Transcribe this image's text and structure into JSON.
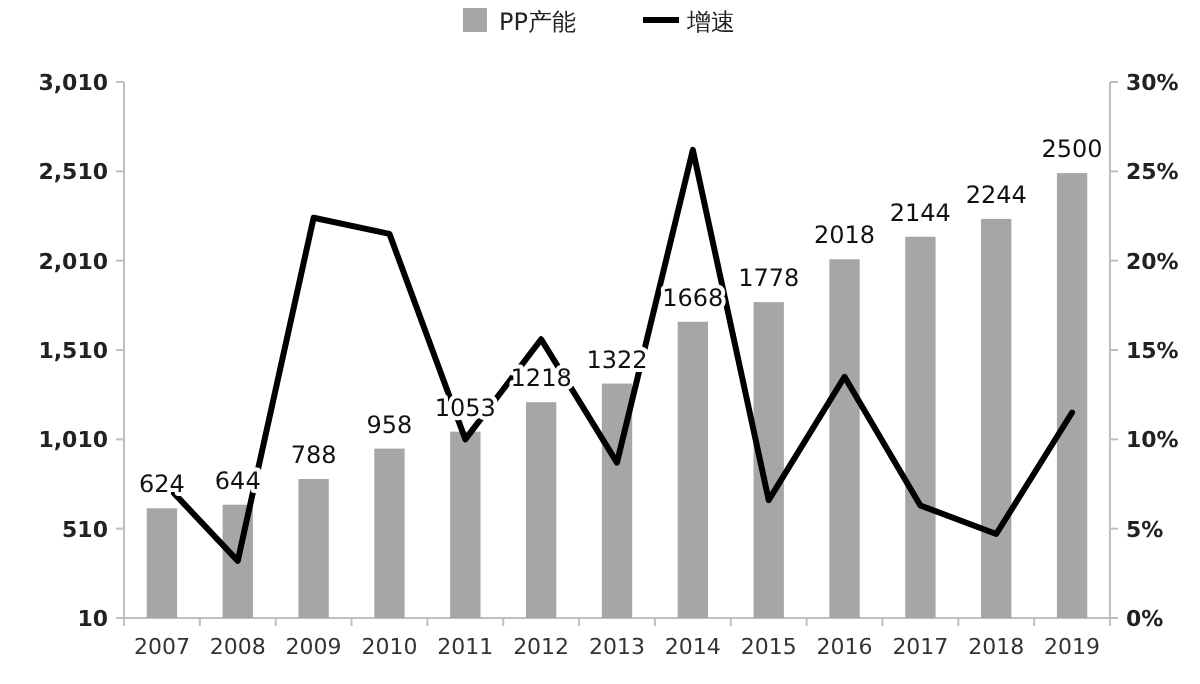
{
  "chart_data": {
    "type": "bar",
    "categories": [
      "2007",
      "2008",
      "2009",
      "2010",
      "2011",
      "2012",
      "2013",
      "2014",
      "2015",
      "2016",
      "2017",
      "2018",
      "2019"
    ],
    "series": [
      {
        "name": "PP产能",
        "color": "#a6a6a6",
        "values": [
          624,
          644,
          788,
          958,
          1053,
          1218,
          1322,
          1668,
          1778,
          2018,
          2144,
          2244,
          2500
        ],
        "value_labels": [
          "624",
          "644",
          "788",
          "958",
          "1053",
          "1218",
          "1322",
          "1668",
          "1778",
          "2018",
          "2144",
          "2244",
          "2500"
        ]
      },
      {
        "name": "增速",
        "type": "line",
        "axis": "y2",
        "color": "#000000",
        "values": [
          7.7,
          3.2,
          22.4,
          21.5,
          10.0,
          15.6,
          8.7,
          26.2,
          6.6,
          13.5,
          6.3,
          4.7,
          11.5
        ]
      }
    ],
    "ylim": [
      10,
      3010
    ],
    "yticks": [
      {
        "value": 10,
        "label": "10"
      },
      {
        "value": 510,
        "label": "510"
      },
      {
        "value": 1010,
        "label": "1,010"
      },
      {
        "value": 1510,
        "label": "1,510"
      },
      {
        "value": 2010,
        "label": "2,010"
      },
      {
        "value": 2510,
        "label": "2,510"
      },
      {
        "value": 3010,
        "label": "3,010"
      }
    ],
    "y2lim": [
      0,
      30
    ],
    "y2ticks": [
      {
        "value": 0,
        "label": "0%"
      },
      {
        "value": 5,
        "label": "5%"
      },
      {
        "value": 10,
        "label": "10%"
      },
      {
        "value": 15,
        "label": "15%"
      },
      {
        "value": 20,
        "label": "20%"
      },
      {
        "value": 25,
        "label": "25%"
      },
      {
        "value": 30,
        "label": "30%"
      }
    ],
    "legend": "top"
  }
}
